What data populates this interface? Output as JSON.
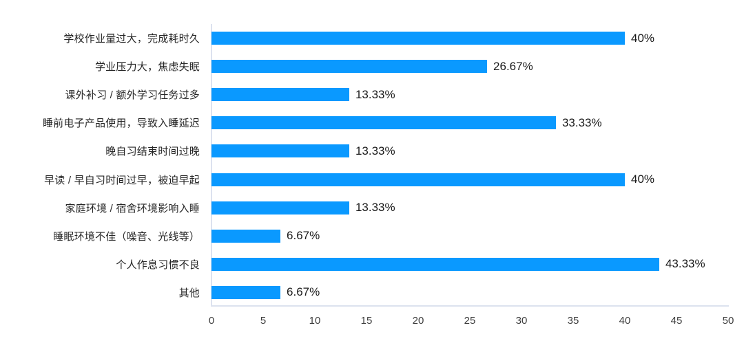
{
  "chart_data": {
    "type": "bar",
    "orientation": "horizontal",
    "title": "",
    "xlabel": "",
    "ylabel": "",
    "categories": [
      "学校作业量过大，完成耗时久",
      "学业压力大，焦虑失眠",
      "课外补习 / 额外学习任务过多",
      "睡前电子产品使用，导致入睡延迟",
      "晚自习结束时间过晚",
      "早读 / 早自习时间过早，被迫早起",
      "家庭环境 / 宿舍环境影响入睡",
      "睡眠环境不佳（噪音、光线等）",
      "个人作息习惯不良",
      "其他"
    ],
    "values": [
      40,
      26.67,
      13.33,
      33.33,
      13.33,
      40,
      13.33,
      6.67,
      43.33,
      6.67
    ],
    "value_labels": [
      "40%",
      "26.67%",
      "13.33%",
      "33.33%",
      "13.33%",
      "40%",
      "13.33%",
      "6.67%",
      "43.33%",
      "6.67%"
    ],
    "xlim": [
      0,
      50
    ],
    "x_ticks": [
      "0",
      "5",
      "10",
      "15",
      "20",
      "25",
      "30",
      "35",
      "40",
      "45",
      "50"
    ],
    "grid": false,
    "legend": "none",
    "bar_color": "#0A99FF",
    "axis_line_color": "#DCE2EF",
    "label_color": "#262626",
    "value_color": "#1A1A1A",
    "tick_color": "#3D3D3D"
  }
}
